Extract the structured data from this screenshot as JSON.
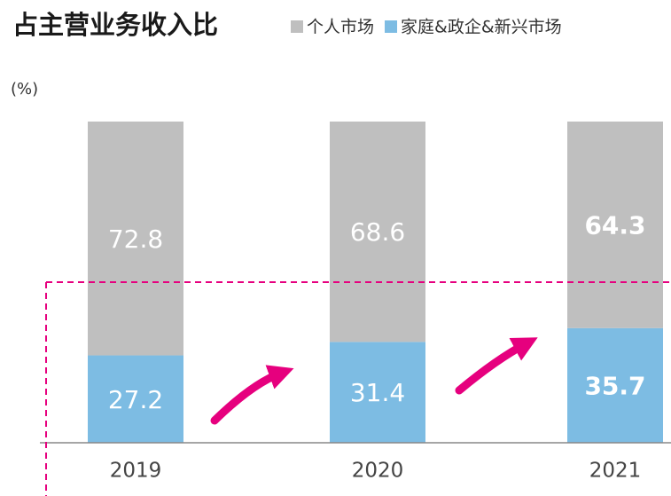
{
  "chart_data": {
    "type": "stacked_bar",
    "title": "占主营业务收入比",
    "y_label": "(%)",
    "categories": [
      "2019",
      "2020",
      "2021"
    ],
    "series": [
      {
        "name": "个人市场",
        "color": "#bfbfbf",
        "values": [
          72.8,
          68.6,
          64.3
        ]
      },
      {
        "name": "家庭&政企&新兴市场",
        "color": "#7dbce3",
        "values": [
          27.2,
          31.4,
          35.7
        ]
      }
    ],
    "ylim": [
      0,
      100
    ]
  }
}
